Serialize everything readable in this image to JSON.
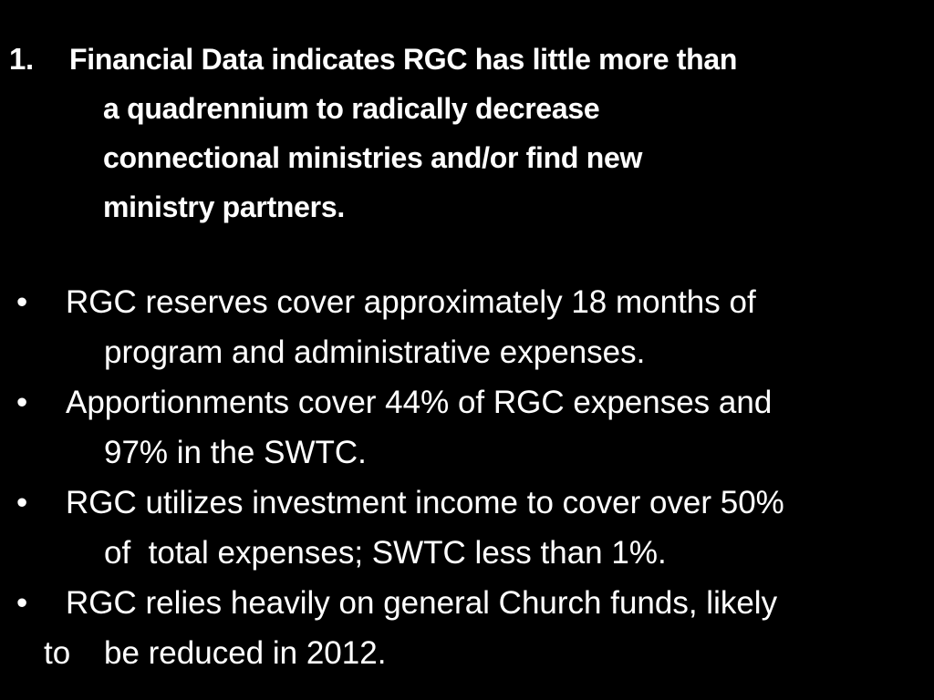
{
  "heading": {
    "number": "1.",
    "lines": [
      "Financial Data indicates RGC has little more than",
      "a quadrennium to radically decrease",
      "connectional ministries and/or find new",
      "ministry partners."
    ]
  },
  "bullets": [
    {
      "marker": "•",
      "lines": [
        "RGC reserves cover approximately 18 months of",
        "program and administrative expenses."
      ]
    },
    {
      "marker": "•",
      "lines": [
        "Apportionments cover 44% of RGC expenses and",
        "97% in the SWTC."
      ]
    },
    {
      "marker": "•",
      "lines": [
        "RGC utilizes investment income to cover over 50%",
        "of  total expenses; SWTC less than 1%."
      ]
    },
    {
      "marker": "•",
      "lines": [
        "RGC relies heavily on general Church funds, likely",
        "to",
        "be reduced in 2012."
      ]
    }
  ]
}
